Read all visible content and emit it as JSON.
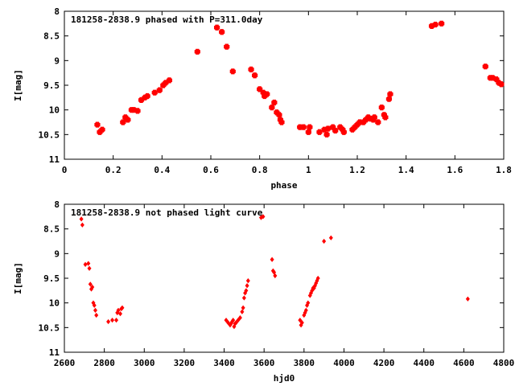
{
  "chart_data": [
    {
      "type": "scatter",
      "title": "181258-2838.9 phased with P=311.0day",
      "xlabel": "phase",
      "ylabel": "I[mag]",
      "xlim": [
        0,
        1.8
      ],
      "ylim": [
        11,
        8
      ],
      "y_inverted": true,
      "grid": false,
      "xticks": [
        0,
        0.2,
        0.4,
        0.6,
        0.8,
        1,
        1.2,
        1.4,
        1.6,
        1.8
      ],
      "xtick_labels": [
        "0",
        "0.2",
        "0.4",
        "0.6",
        "0.8",
        "1",
        "1.2",
        "1.4",
        "1.6",
        "1.8"
      ],
      "yticks": [
        8,
        8.5,
        9,
        9.5,
        10,
        10.5,
        11
      ],
      "ytick_labels": [
        "8",
        "8.5",
        "9",
        "9.5",
        "10",
        "10.5",
        "11"
      ],
      "marker": "cross",
      "marker_color": "#ff0000",
      "points": [
        [
          0.135,
          10.3
        ],
        [
          0.145,
          10.45
        ],
        [
          0.155,
          10.4
        ],
        [
          0.24,
          10.25
        ],
        [
          0.25,
          10.15
        ],
        [
          0.26,
          10.2
        ],
        [
          0.275,
          10.0
        ],
        [
          0.285,
          10.0
        ],
        [
          0.3,
          10.02
        ],
        [
          0.315,
          9.8
        ],
        [
          0.33,
          9.75
        ],
        [
          0.34,
          9.72
        ],
        [
          0.37,
          9.65
        ],
        [
          0.39,
          9.6
        ],
        [
          0.405,
          9.5
        ],
        [
          0.415,
          9.45
        ],
        [
          0.43,
          9.4
        ],
        [
          0.545,
          8.82
        ],
        [
          0.625,
          8.33
        ],
        [
          0.645,
          8.42
        ],
        [
          0.665,
          8.72
        ],
        [
          0.69,
          9.22
        ],
        [
          0.765,
          9.18
        ],
        [
          0.78,
          9.3
        ],
        [
          0.8,
          9.58
        ],
        [
          0.815,
          9.65
        ],
        [
          0.82,
          9.72
        ],
        [
          0.83,
          9.68
        ],
        [
          0.85,
          9.95
        ],
        [
          0.86,
          9.85
        ],
        [
          0.87,
          10.05
        ],
        [
          0.88,
          10.1
        ],
        [
          0.885,
          10.2
        ],
        [
          0.89,
          10.25
        ],
        [
          0.965,
          10.35
        ],
        [
          0.98,
          10.35
        ],
        [
          1.0,
          10.45
        ],
        [
          1.005,
          10.35
        ],
        [
          1.045,
          10.45
        ],
        [
          1.065,
          10.4
        ],
        [
          1.075,
          10.5
        ],
        [
          1.08,
          10.38
        ],
        [
          1.1,
          10.35
        ],
        [
          1.11,
          10.42
        ],
        [
          1.13,
          10.35
        ],
        [
          1.14,
          10.4
        ],
        [
          1.145,
          10.45
        ],
        [
          1.18,
          10.4
        ],
        [
          1.19,
          10.35
        ],
        [
          1.2,
          10.3
        ],
        [
          1.21,
          10.25
        ],
        [
          1.225,
          10.25
        ],
        [
          1.235,
          10.2
        ],
        [
          1.245,
          10.15
        ],
        [
          1.255,
          10.18
        ],
        [
          1.265,
          10.2
        ],
        [
          1.27,
          10.15
        ],
        [
          1.285,
          10.25
        ],
        [
          1.3,
          9.95
        ],
        [
          1.31,
          10.1
        ],
        [
          1.315,
          10.15
        ],
        [
          1.33,
          9.78
        ],
        [
          1.335,
          9.68
        ],
        [
          1.505,
          8.3
        ],
        [
          1.52,
          8.27
        ],
        [
          1.545,
          8.25
        ],
        [
          1.725,
          9.12
        ],
        [
          1.745,
          9.35
        ],
        [
          1.755,
          9.35
        ],
        [
          1.77,
          9.38
        ],
        [
          1.78,
          9.45
        ],
        [
          1.79,
          9.48
        ]
      ]
    },
    {
      "type": "scatter",
      "title": "181258-2838.9 not phased light curve",
      "xlabel": "hjd0",
      "ylabel": "I[mag]",
      "xlim": [
        2600,
        4800
      ],
      "ylim": [
        11,
        8
      ],
      "y_inverted": true,
      "grid": false,
      "xticks": [
        2600,
        2800,
        3000,
        3200,
        3400,
        3600,
        3800,
        4000,
        4200,
        4400,
        4600,
        4800
      ],
      "xtick_labels": [
        "2600",
        "2800",
        "3000",
        "3200",
        "3400",
        "3600",
        "3800",
        "4000",
        "4200",
        "4400",
        "4600",
        "4800"
      ],
      "yticks": [
        8,
        8.5,
        9,
        9.5,
        10,
        10.5,
        11
      ],
      "ytick_labels": [
        "8",
        "8.5",
        "9",
        "9.5",
        "10",
        "10.5",
        "11"
      ],
      "marker": "diamond",
      "marker_color": "#ff0000",
      "points": [
        [
          2685,
          8.3
        ],
        [
          2690,
          8.42
        ],
        [
          2705,
          9.22
        ],
        [
          2720,
          9.2
        ],
        [
          2725,
          9.3
        ],
        [
          2730,
          9.62
        ],
        [
          2735,
          9.72
        ],
        [
          2740,
          9.68
        ],
        [
          2745,
          10.0
        ],
        [
          2750,
          10.05
        ],
        [
          2755,
          10.15
        ],
        [
          2760,
          10.25
        ],
        [
          2820,
          10.38
        ],
        [
          2840,
          10.35
        ],
        [
          2860,
          10.35
        ],
        [
          2865,
          10.2
        ],
        [
          2870,
          10.15
        ],
        [
          2880,
          10.22
        ],
        [
          2885,
          10.12
        ],
        [
          2890,
          10.1
        ],
        [
          3410,
          10.35
        ],
        [
          3420,
          10.4
        ],
        [
          3430,
          10.45
        ],
        [
          3435,
          10.42
        ],
        [
          3440,
          10.38
        ],
        [
          3445,
          10.35
        ],
        [
          3450,
          10.48
        ],
        [
          3455,
          10.42
        ],
        [
          3460,
          10.4
        ],
        [
          3470,
          10.35
        ],
        [
          3480,
          10.3
        ],
        [
          3490,
          10.18
        ],
        [
          3495,
          10.1
        ],
        [
          3500,
          9.9
        ],
        [
          3505,
          9.8
        ],
        [
          3510,
          9.75
        ],
        [
          3515,
          9.65
        ],
        [
          3520,
          9.55
        ],
        [
          3585,
          8.27
        ],
        [
          3595,
          8.25
        ],
        [
          3640,
          9.12
        ],
        [
          3645,
          9.35
        ],
        [
          3650,
          9.38
        ],
        [
          3655,
          9.45
        ],
        [
          3780,
          10.35
        ],
        [
          3785,
          10.45
        ],
        [
          3790,
          10.4
        ],
        [
          3800,
          10.25
        ],
        [
          3805,
          10.2
        ],
        [
          3810,
          10.15
        ],
        [
          3815,
          10.05
        ],
        [
          3820,
          10.0
        ],
        [
          3830,
          9.85
        ],
        [
          3835,
          9.8
        ],
        [
          3840,
          9.75
        ],
        [
          3845,
          9.7
        ],
        [
          3850,
          9.7
        ],
        [
          3855,
          9.65
        ],
        [
          3860,
          9.6
        ],
        [
          3865,
          9.55
        ],
        [
          3870,
          9.5
        ],
        [
          3900,
          8.75
        ],
        [
          3935,
          8.68
        ],
        [
          4620,
          9.92
        ]
      ]
    }
  ]
}
